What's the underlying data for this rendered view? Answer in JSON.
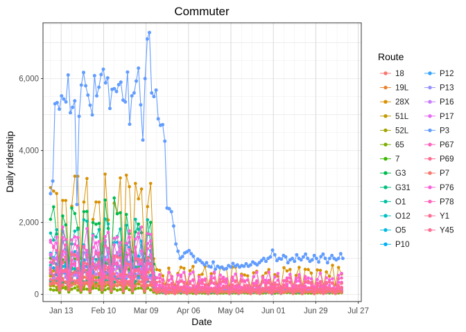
{
  "chart_data": {
    "type": "line",
    "title": "Commuter",
    "xlabel": "Date",
    "ylabel": "Daily ridership",
    "x_ticks": [
      "Jan 13",
      "Feb 10",
      "Mar 09",
      "Apr 06",
      "May 04",
      "Jun 01",
      "Jun 29",
      "Jul 27"
    ],
    "x_range": [
      "2020-01-01",
      "2020-07-29"
    ],
    "y_ticks": [
      "0",
      "2,000",
      "4,000",
      "6,000"
    ],
    "ylim": [
      -200,
      7550
    ],
    "grid": true,
    "legend_title": "Route",
    "legend_position": "right",
    "series": [
      {
        "name": "18",
        "color": "#F8766D",
        "level": [
          300,
          60
        ]
      },
      {
        "name": "19L",
        "color": "#EA8331",
        "level": [
          500,
          90
        ]
      },
      {
        "name": "28X",
        "color": "#D89000",
        "level": [
          2700,
          650
        ]
      },
      {
        "name": "51L",
        "color": "#C09B00",
        "level": [
          600,
          100
        ]
      },
      {
        "name": "52L",
        "color": "#A3A500",
        "level": [
          250,
          50
        ]
      },
      {
        "name": "65",
        "color": "#7CAE00",
        "level": [
          150,
          40
        ]
      },
      {
        "name": "7",
        "color": "#39B600",
        "level": [
          900,
          120
        ]
      },
      {
        "name": "G3",
        "color": "#00BB4E",
        "level": [
          2200,
          150
        ]
      },
      {
        "name": "G31",
        "color": "#00BF7D",
        "level": [
          400,
          80
        ]
      },
      {
        "name": "O1",
        "color": "#00C1A3",
        "level": [
          1700,
          140
        ]
      },
      {
        "name": "O12",
        "color": "#00BFC4",
        "level": [
          800,
          110
        ]
      },
      {
        "name": "O5",
        "color": "#00BAE0",
        "level": [
          1200,
          130
        ]
      },
      {
        "name": "P10",
        "color": "#00B0F6",
        "level": [
          700,
          90
        ]
      },
      {
        "name": "P12",
        "color": "#35A2FF",
        "level": [
          500,
          80
        ]
      },
      {
        "name": "P13",
        "color": "#9590FF",
        "level": [
          1000,
          140
        ]
      },
      {
        "name": "P16",
        "color": "#C77CFF",
        "level": [
          600,
          100
        ]
      },
      {
        "name": "P17",
        "color": "#E76BF3",
        "level": [
          900,
          160
        ]
      },
      {
        "name": "P3",
        "color": "#FA62DB",
        "level": [
          1300,
          320
        ]
      },
      {
        "name": "P67",
        "color": "#FF62BC",
        "level": [
          700,
          200
        ]
      },
      {
        "name": "P69",
        "color": "#FF6C91",
        "level": [
          400,
          90
        ]
      },
      {
        "name": "P7",
        "color": "#F8766D",
        "level": [
          300,
          70
        ]
      },
      {
        "name": "P76",
        "color": "#FA62DB",
        "level": [
          1500,
          500
        ]
      },
      {
        "name": "P78",
        "color": "#FF62BC",
        "level": [
          1100,
          400
        ]
      },
      {
        "name": "Y1",
        "color": "#FF6C91",
        "level": [
          900,
          300
        ]
      },
      {
        "name": "Y45",
        "color": "#FF6C91",
        "level": [
          600,
          150
        ]
      }
    ],
    "highlight_series": {
      "name": "P3",
      "color": "#619CFF",
      "values": [
        2800,
        3150,
        5300,
        5330,
        5150,
        5520,
        5430,
        5350,
        6100,
        5050,
        5200,
        5380,
        2500,
        4950,
        5820,
        6170,
        5800,
        5540,
        5260,
        4990,
        6080,
        5520,
        5760,
        6110,
        6260,
        5880,
        6020,
        5170,
        5700,
        5720,
        5640,
        5830,
        5900,
        5400,
        5350,
        6180,
        4730,
        5520,
        5600,
        5930,
        6290,
        5270,
        4290,
        6000,
        7100,
        7280,
        5600,
        5500,
        5680,
        4880,
        4700,
        4720,
        4260,
        2400,
        2380,
        2300,
        1900,
        1400,
        1200,
        1000,
        1050,
        1150,
        1180,
        1220,
        1130,
        1060,
        900,
        980,
        940,
        880,
        820,
        880,
        780,
        760,
        900,
        700,
        780,
        740,
        760,
        700,
        720,
        800,
        760,
        860,
        780,
        820,
        760,
        800,
        780,
        850,
        780,
        820,
        900,
        860,
        820,
        880,
        940,
        1000,
        920,
        1000,
        1040,
        1230,
        1100,
        940,
        1000,
        980,
        1080,
        1040,
        880,
        960,
        1000,
        920,
        1100,
        1000,
        960,
        1040,
        1120,
        1000,
        920,
        960,
        1080,
        1000,
        900,
        1050,
        1120,
        1000,
        880,
        1000,
        1080,
        1000,
        960,
        1000,
        1130,
        1000
      ]
    }
  }
}
